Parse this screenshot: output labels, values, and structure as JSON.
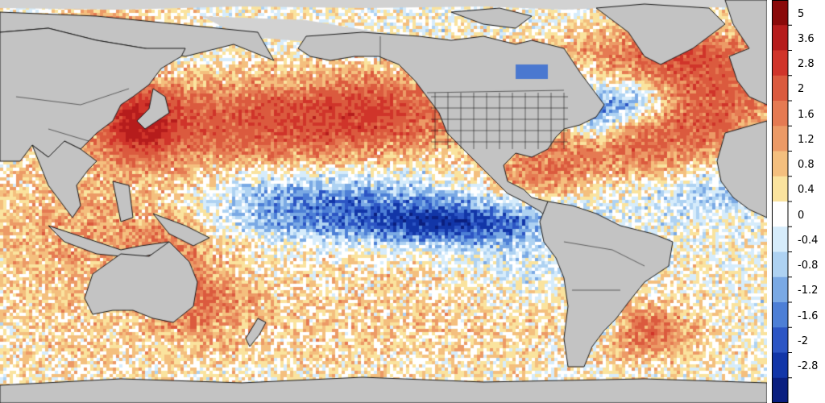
{
  "map": {
    "type": "heatmap",
    "subject": "sea surface temperature anomaly",
    "colors": {
      "land": "#c3c3c3",
      "coastline": "#1a1a1a",
      "no_data": "#d2d2d2"
    },
    "regions_warm": [
      "North Pacific",
      "Kuroshio / Japan",
      "Gulf of Mexico",
      "Caribbean",
      "North Atlantic east",
      "Indian Ocean east",
      "Tasman Sea",
      "South Atlantic west"
    ],
    "regions_cool": [
      "Equatorial Pacific",
      "Northwest Atlantic",
      "Gulf of St. Lawrence"
    ]
  },
  "colorbar": {
    "labels": [
      "5",
      "3.6",
      "2.8",
      "2",
      "1.6",
      "1.2",
      "0.8",
      "0.4",
      "0",
      "-0.4",
      "-0.8",
      "-1.2",
      "-1.6",
      "-2",
      "-2.8"
    ],
    "colors": [
      "#8a0a0a",
      "#b61c1c",
      "#d0342a",
      "#db5a3e",
      "#e57a52",
      "#ec9a66",
      "#f4bf7e",
      "#fae39e",
      "#ffffff",
      "#d6ecfb",
      "#aed2f2",
      "#7aa9e4",
      "#4d7fd6",
      "#2c55c4",
      "#1236a8",
      "#0a1f80"
    ]
  }
}
